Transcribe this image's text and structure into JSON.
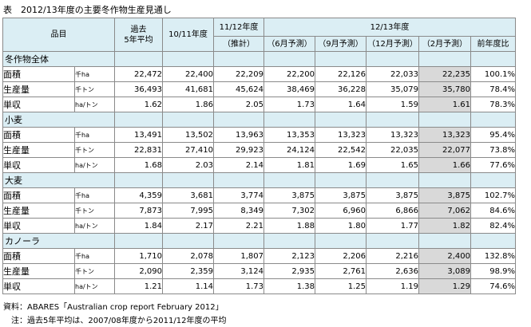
{
  "title": "表　2012/13年度の主要冬作物生産見通し",
  "header": {
    "item": "品目",
    "past_avg": "過去\n5年平均",
    "y1011": "10/11年度",
    "y1112": "11/12年度",
    "y1112_sub": "（推計）",
    "y1213": "12/13年度",
    "jun": "（6月予測）",
    "sep": "（9月予測）",
    "dec": "（12月予測）",
    "feb": "（2月予測）",
    "ratio": "前年度比"
  },
  "groups": [
    {
      "label": "冬作物全体",
      "rows": [
        {
          "item": "面積",
          "unit": "千ha",
          "values": [
            "22,472",
            "22,400",
            "22,209",
            "22,200",
            "22,126",
            "22,033",
            "22,235"
          ],
          "ratio": "100.1%"
        },
        {
          "item": "生産量",
          "unit": "千トン",
          "values": [
            "36,493",
            "41,681",
            "45,624",
            "38,469",
            "36,228",
            "35,079",
            "35,780"
          ],
          "ratio": "78.4%"
        },
        {
          "item": "単収",
          "unit": "ha/トン",
          "values": [
            "1.62",
            "1.86",
            "2.05",
            "1.73",
            "1.64",
            "1.59",
            "1.61"
          ],
          "ratio": "78.3%"
        }
      ]
    },
    {
      "label": "小麦",
      "rows": [
        {
          "item": "面積",
          "unit": "千ha",
          "values": [
            "13,491",
            "13,502",
            "13,963",
            "13,353",
            "13,323",
            "13,323",
            "13,323"
          ],
          "ratio": "95.4%"
        },
        {
          "item": "生産量",
          "unit": "千トン",
          "values": [
            "22,831",
            "27,410",
            "29,923",
            "24,124",
            "22,542",
            "22,035",
            "22,077"
          ],
          "ratio": "73.8%"
        },
        {
          "item": "単収",
          "unit": "ha/トン",
          "values": [
            "1.68",
            "2.03",
            "2.14",
            "1.81",
            "1.69",
            "1.65",
            "1.66"
          ],
          "ratio": "77.6%"
        }
      ]
    },
    {
      "label": "大麦",
      "rows": [
        {
          "item": "面積",
          "unit": "千ha",
          "values": [
            "4,359",
            "3,681",
            "3,774",
            "3,875",
            "3,875",
            "3,875",
            "3,875"
          ],
          "ratio": "102.7%"
        },
        {
          "item": "生産量",
          "unit": "千トン",
          "values": [
            "7,873",
            "7,995",
            "8,349",
            "7,302",
            "6,960",
            "6,866",
            "7,062"
          ],
          "ratio": "84.6%"
        },
        {
          "item": "単収",
          "unit": "ha/トン",
          "values": [
            "1.84",
            "2.17",
            "2.21",
            "1.88",
            "1.80",
            "1.77",
            "1.82"
          ],
          "ratio": "82.4%"
        }
      ]
    },
    {
      "label": "カノーラ",
      "rows": [
        {
          "item": "面積",
          "unit": "千ha",
          "values": [
            "1,710",
            "2,078",
            "1,807",
            "2,123",
            "2,206",
            "2,216",
            "2,400"
          ],
          "ratio": "132.8%"
        },
        {
          "item": "生産量",
          "unit": "千トン",
          "values": [
            "2,090",
            "2,359",
            "3,124",
            "2,935",
            "2,761",
            "2,636",
            "3,089"
          ],
          "ratio": "98.9%"
        },
        {
          "item": "単収",
          "unit": "ha/トン",
          "values": [
            "1.21",
            "1.14",
            "1.73",
            "1.38",
            "1.25",
            "1.19",
            "1.29"
          ],
          "ratio": "74.6%"
        }
      ]
    }
  ],
  "footnotes": {
    "source": "資料：ABARES「Australian crop report February 2012」",
    "note": "　注：過去5年平均は、2007/08年度から2011/12年度の平均"
  }
}
